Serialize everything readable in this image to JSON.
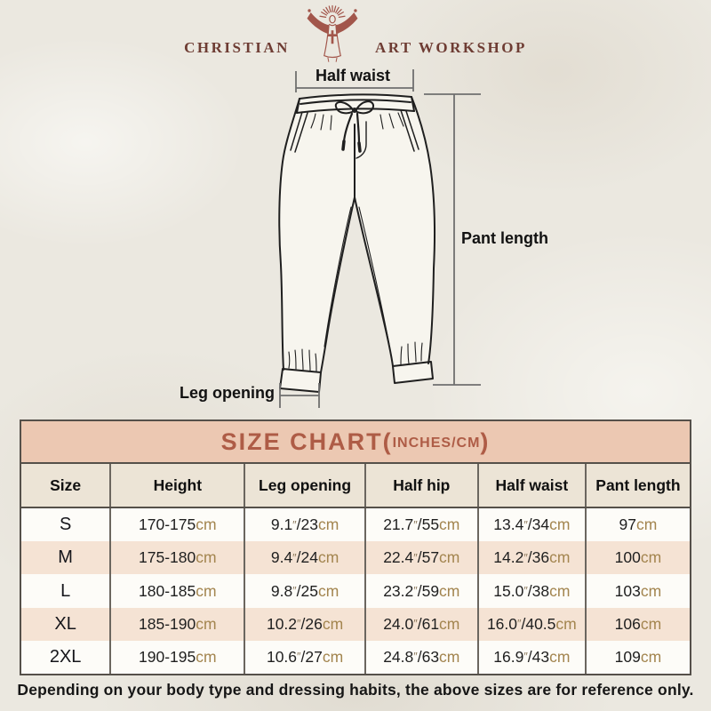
{
  "brand": {
    "name_left": "CHRISTIAN",
    "name_right": "ART WORKSHOP"
  },
  "diagram": {
    "half_waist_label": "Half waist",
    "pant_length_label": "Pant length",
    "leg_opening_label": "Leg opening"
  },
  "size_chart": {
    "title": "SIZE CHART",
    "paren_open": "(",
    "units": "INCHES/CM",
    "paren_close": ")",
    "columns": [
      "Size",
      "Height",
      "Leg opening",
      "Half hip",
      "Half waist",
      "Pant length"
    ],
    "rows": [
      {
        "size": "S",
        "height": "170-175cm",
        "leg_opening": "9.1″/23cm",
        "half_hip": "21.7″/55cm",
        "half_waist": "13.4″/34cm",
        "pant_length": "97cm"
      },
      {
        "size": "M",
        "height": "175-180cm",
        "leg_opening": "9.4″/24cm",
        "half_hip": "22.4″/57cm",
        "half_waist": "14.2″/36cm",
        "pant_length": "100cm"
      },
      {
        "size": "L",
        "height": "180-185cm",
        "leg_opening": "9.8″/25cm",
        "half_hip": "23.2″/59cm",
        "half_waist": "15.0″/38cm",
        "pant_length": "103cm"
      },
      {
        "size": "XL",
        "height": "185-190cm",
        "leg_opening": "10.2″/26cm",
        "half_hip": "24.0″/61cm",
        "half_waist": "16.0″/40.5cm",
        "pant_length": "106cm"
      },
      {
        "size": "2XL",
        "height": "190-195cm",
        "leg_opening": "10.6″/27cm",
        "half_hip": "24.8″/63cm",
        "half_waist": "16.9″/43cm",
        "pant_length": "109cm"
      }
    ]
  },
  "footer_note": "Depending on your body type and dressing habits, the above sizes are for reference only.",
  "colors": {
    "page_bg": "#ebe8e0",
    "brand_text": "#6e3c33",
    "brand_figure": "#a2564b",
    "band_bg": "#ecc8b2",
    "band_text": "#ae5c46",
    "header_row_bg": "#ece4d6",
    "row_bg": "#fdfcf8",
    "row_alt_bg": "#f5e3d4",
    "number_text": "#1f1f1f",
    "unit_text": "#a3854f",
    "inch_text": "#8d7a5e",
    "table_border": "#55504a",
    "measure_line": "#6f6f6f",
    "pants_line": "#1f1f1f"
  }
}
